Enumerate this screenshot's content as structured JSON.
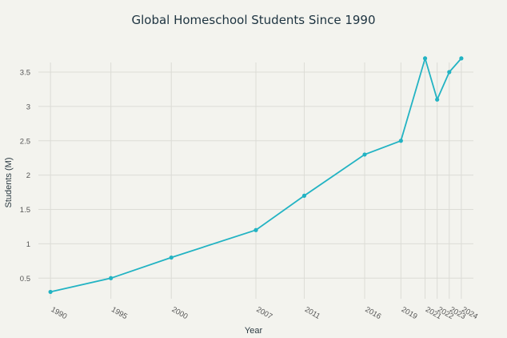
{
  "chart_data": {
    "type": "line",
    "title": "Global Homeschool Students Since 1990",
    "xlabel": "Year",
    "ylabel": "Students (M)",
    "x": [
      1990,
      1995,
      2000,
      2007,
      2011,
      2016,
      2019,
      2021,
      2022,
      2023,
      2024
    ],
    "series": [
      {
        "values": [
          0.3,
          0.5,
          0.8,
          1.2,
          1.7,
          2.3,
          2.5,
          3.7,
          3.1,
          3.5,
          3.7
        ]
      }
    ],
    "xlim": [
      1989,
      2025
    ],
    "ylim": [
      0.2,
      3.85
    ],
    "yticks": [
      0.5,
      1,
      1.5,
      2,
      2.5,
      3,
      3.5
    ],
    "ytick_labels": [
      "0.5",
      "1",
      "1.5",
      "2",
      "2.5",
      "3",
      "3.5"
    ],
    "xtick_labels": [
      "1990",
      "1995",
      "2000",
      "2007",
      "2011",
      "2016",
      "2019",
      "2021",
      "2022",
      "2023",
      "2024"
    ],
    "grid": true,
    "color": "#22b3c3"
  }
}
